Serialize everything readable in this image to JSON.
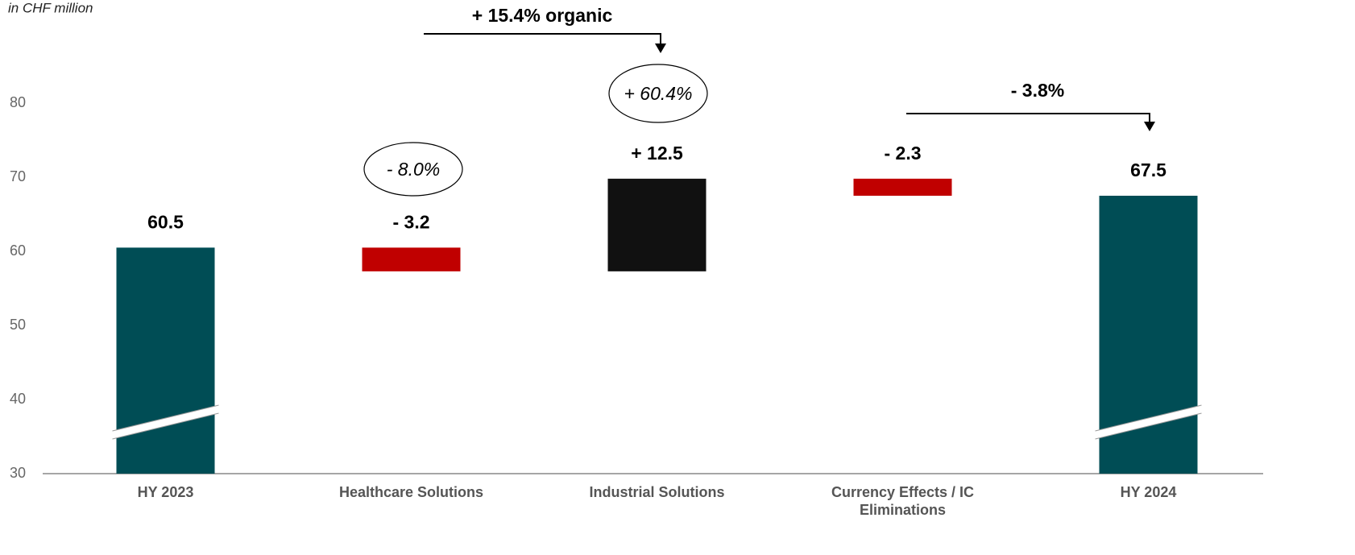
{
  "chart_data": {
    "type": "waterfall",
    "unit_note": "in CHF million",
    "categories": [
      "HY 2023",
      "Healthcare Solutions",
      "Industrial Solutions",
      "Currency Effects / IC Eliminations",
      "HY 2024"
    ],
    "values": [
      60.5,
      -3.2,
      12.5,
      -2.3,
      67.5
    ],
    "value_labels": [
      "60.5",
      "- 3.2",
      "+ 12.5",
      "- 2.3",
      "67.5"
    ],
    "measure": [
      "total",
      "relative",
      "relative",
      "relative",
      "total"
    ],
    "colors": [
      "#004d55",
      "#c00000",
      "#111111",
      "#c00000",
      "#004d55"
    ],
    "annotations": [
      "+ 15.4% organic",
      "+ 60.4%",
      "- 8.0%",
      "- 3.8%"
    ],
    "ylim": [
      30,
      80
    ],
    "yticks": [
      30,
      40,
      50,
      60,
      70,
      80
    ],
    "axis_break": true
  }
}
